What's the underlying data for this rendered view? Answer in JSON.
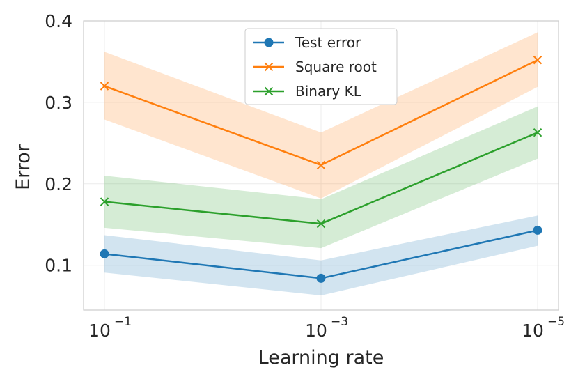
{
  "chart_data": {
    "type": "line",
    "xlabel": "Learning rate",
    "ylabel": "Error",
    "x_ticks": [
      {
        "base": "10",
        "exp": "−1"
      },
      {
        "base": "10",
        "exp": "−3"
      },
      {
        "base": "10",
        "exp": "−5"
      }
    ],
    "x": [
      0.1,
      0.001,
      1e-05
    ],
    "x_scale": "log",
    "x_reversed": true,
    "y_ticks": [
      "0.1",
      "0.2",
      "0.3",
      "0.4"
    ],
    "ylim": [
      0.045,
      0.4
    ],
    "grid": true,
    "legend_position": "top-center",
    "series": [
      {
        "name": "Test error",
        "marker": "circle",
        "color": "#1f77b4",
        "values": [
          0.114,
          0.084,
          0.143
        ],
        "lower": [
          0.091,
          0.063,
          0.124
        ],
        "upper": [
          0.137,
          0.106,
          0.161
        ]
      },
      {
        "name": "Square root",
        "marker": "x",
        "color": "#ff7f0e",
        "values": [
          0.32,
          0.223,
          0.352
        ],
        "lower": [
          0.279,
          0.182,
          0.319
        ],
        "upper": [
          0.362,
          0.263,
          0.386
        ]
      },
      {
        "name": "Binary KL",
        "marker": "x",
        "color": "#2ca02c",
        "values": [
          0.178,
          0.151,
          0.263
        ],
        "lower": [
          0.146,
          0.121,
          0.231
        ],
        "upper": [
          0.21,
          0.181,
          0.295
        ]
      }
    ]
  }
}
